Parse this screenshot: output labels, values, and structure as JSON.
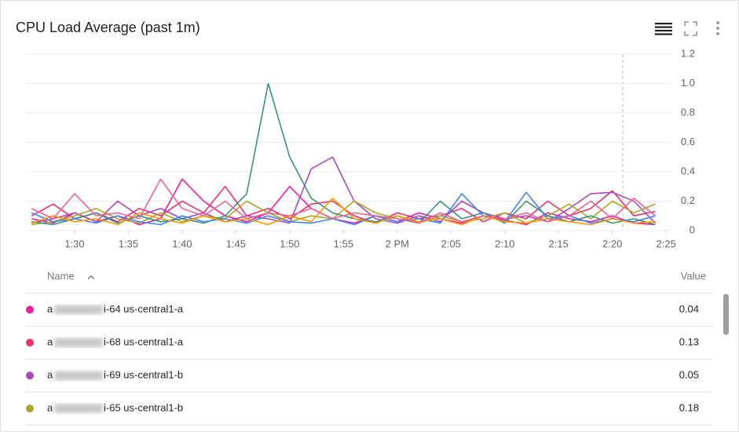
{
  "chart_data": {
    "type": "line",
    "title": "CPU Load Average (past 1m)",
    "x": [
      26,
      28,
      30,
      32,
      34,
      36,
      38,
      40,
      42,
      44,
      46,
      48,
      50,
      52,
      54,
      56,
      58,
      60,
      62,
      64,
      66,
      68,
      70,
      72,
      74,
      76,
      78,
      80,
      82,
      84
    ],
    "xlim": [
      25.4,
      85.5
    ],
    "xticks": [
      {
        "value": 30,
        "label": "1:30"
      },
      {
        "value": 35,
        "label": "1:35"
      },
      {
        "value": 40,
        "label": "1:40"
      },
      {
        "value": 45,
        "label": "1:45"
      },
      {
        "value": 50,
        "label": "1:50"
      },
      {
        "value": 55,
        "label": "1:55"
      },
      {
        "value": 60,
        "label": "2 PM"
      },
      {
        "value": 65,
        "label": "2:05"
      },
      {
        "value": 70,
        "label": "2:10"
      },
      {
        "value": 75,
        "label": "2:15"
      },
      {
        "value": 80,
        "label": "2:20"
      },
      {
        "value": 85,
        "label": "2:25"
      }
    ],
    "ylim": [
      0,
      1.2
    ],
    "yticks": [
      0,
      0.2,
      0.4,
      0.6,
      0.8,
      {
        "value": 1.0,
        "label": "1.0"
      },
      1.2
    ],
    "grid": true,
    "series": [
      {
        "color": "#e91e9c",
        "values": [
          0.08,
          0.05,
          0.12,
          0.06,
          0.1,
          0.04,
          0.08,
          0.35,
          0.2,
          0.1,
          0.06,
          0.12,
          0.3,
          0.15,
          0.08,
          0.05,
          0.1,
          0.06,
          0.12,
          0.08,
          0.05,
          0.1,
          0.07,
          0.04,
          0.12,
          0.08,
          0.06,
          0.1,
          0.05,
          0.04
        ]
      },
      {
        "color": "#e8336b",
        "values": [
          0.1,
          0.18,
          0.08,
          0.12,
          0.06,
          0.15,
          0.1,
          0.2,
          0.12,
          0.3,
          0.1,
          0.15,
          0.08,
          0.18,
          0.2,
          0.1,
          0.05,
          0.12,
          0.08,
          0.1,
          0.15,
          0.06,
          0.12,
          0.08,
          0.2,
          0.1,
          0.15,
          0.27,
          0.1,
          0.13
        ]
      },
      {
        "color": "#ab47bc",
        "values": [
          0.05,
          0.08,
          0.12,
          0.06,
          0.2,
          0.1,
          0.15,
          0.08,
          0.12,
          0.06,
          0.1,
          0.08,
          0.05,
          0.42,
          0.5,
          0.2,
          0.08,
          0.05,
          0.1,
          0.06,
          0.2,
          0.12,
          0.08,
          0.1,
          0.06,
          0.15,
          0.25,
          0.26,
          0.2,
          0.05
        ]
      },
      {
        "color": "#a8a82a",
        "values": [
          0.04,
          0.06,
          0.1,
          0.15,
          0.08,
          0.05,
          0.12,
          0.06,
          0.1,
          0.08,
          0.2,
          0.12,
          0.06,
          0.1,
          0.08,
          0.2,
          0.12,
          0.08,
          0.05,
          0.1,
          0.06,
          0.08,
          0.12,
          0.05,
          0.1,
          0.18,
          0.08,
          0.2,
          0.12,
          0.18
        ]
      },
      {
        "color": "#3b9080",
        "values": [
          0.06,
          0.04,
          0.08,
          0.12,
          0.05,
          0.1,
          0.06,
          0.08,
          0.05,
          0.1,
          0.25,
          1.0,
          0.5,
          0.22,
          0.12,
          0.08,
          0.06,
          0.1,
          0.05,
          0.2,
          0.08,
          0.12,
          0.05,
          0.2,
          0.1,
          0.06,
          0.1,
          0.05,
          0.08,
          0.04
        ]
      },
      {
        "color": "#4285f4",
        "values": [
          0.12,
          0.06,
          0.08,
          0.05,
          0.1,
          0.06,
          0.04,
          0.1,
          0.06,
          0.08,
          0.05,
          0.1,
          0.06,
          0.05,
          0.08,
          0.04,
          0.1,
          0.06,
          0.08,
          0.05,
          0.25,
          0.1,
          0.06,
          0.26,
          0.08,
          0.1,
          0.05,
          0.08,
          0.06,
          0.1
        ]
      },
      {
        "color": "#ff9800",
        "values": [
          0.05,
          0.1,
          0.06,
          0.08,
          0.04,
          0.12,
          0.08,
          0.05,
          0.1,
          0.06,
          0.08,
          0.04,
          0.1,
          0.06,
          0.22,
          0.08,
          0.05,
          0.1,
          0.06,
          0.08,
          0.04,
          0.1,
          0.06,
          0.05,
          0.08,
          0.06,
          0.04,
          0.08,
          0.05,
          0.06
        ]
      },
      {
        "color": "#f06292",
        "values": [
          0.15,
          0.08,
          0.25,
          0.1,
          0.12,
          0.08,
          0.35,
          0.15,
          0.1,
          0.2,
          0.08,
          0.12,
          0.1,
          0.15,
          0.08,
          0.12,
          0.1,
          0.08,
          0.05,
          0.12,
          0.06,
          0.1,
          0.08,
          0.12,
          0.06,
          0.1,
          0.2,
          0.08,
          0.22,
          0.1
        ]
      }
    ]
  },
  "table": {
    "headers": [
      "Name",
      "Value"
    ],
    "rows": [
      {
        "color": "#e91e9c",
        "prefix": "a",
        "suffix": "i-64 us-central1-a",
        "value": "0.04"
      },
      {
        "color": "#e8336b",
        "prefix": "a",
        "suffix": "i-68 us-central1-a",
        "value": "0.13"
      },
      {
        "color": "#ab47bc",
        "prefix": "a",
        "suffix": "i-69 us-central1-b",
        "value": "0.05"
      },
      {
        "color": "#a8a82a",
        "prefix": "a",
        "suffix": "i-65 us-central1-b",
        "value": "0.18"
      }
    ]
  }
}
